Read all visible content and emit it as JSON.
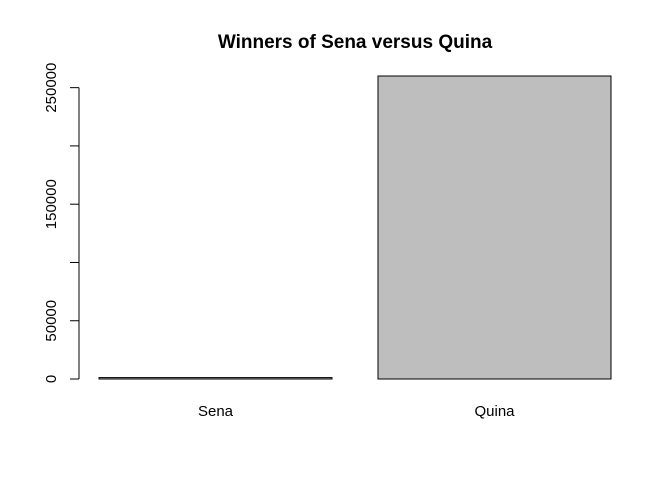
{
  "chart_data": {
    "type": "bar",
    "title": "Winners of Sena versus Quina",
    "categories": [
      "Sena",
      "Quina"
    ],
    "values": [
      1200,
      260000
    ],
    "ylim": [
      0,
      260000
    ],
    "yticks": [
      0,
      50000,
      100000,
      150000,
      200000,
      250000
    ],
    "ytick_labels": [
      "0",
      "50000",
      "",
      "150000",
      "",
      "250000"
    ],
    "xlabel": "",
    "ylabel": "",
    "bar_fill": "#bebebe",
    "bar_stroke": "#000000",
    "grid": false,
    "legend": "none"
  }
}
